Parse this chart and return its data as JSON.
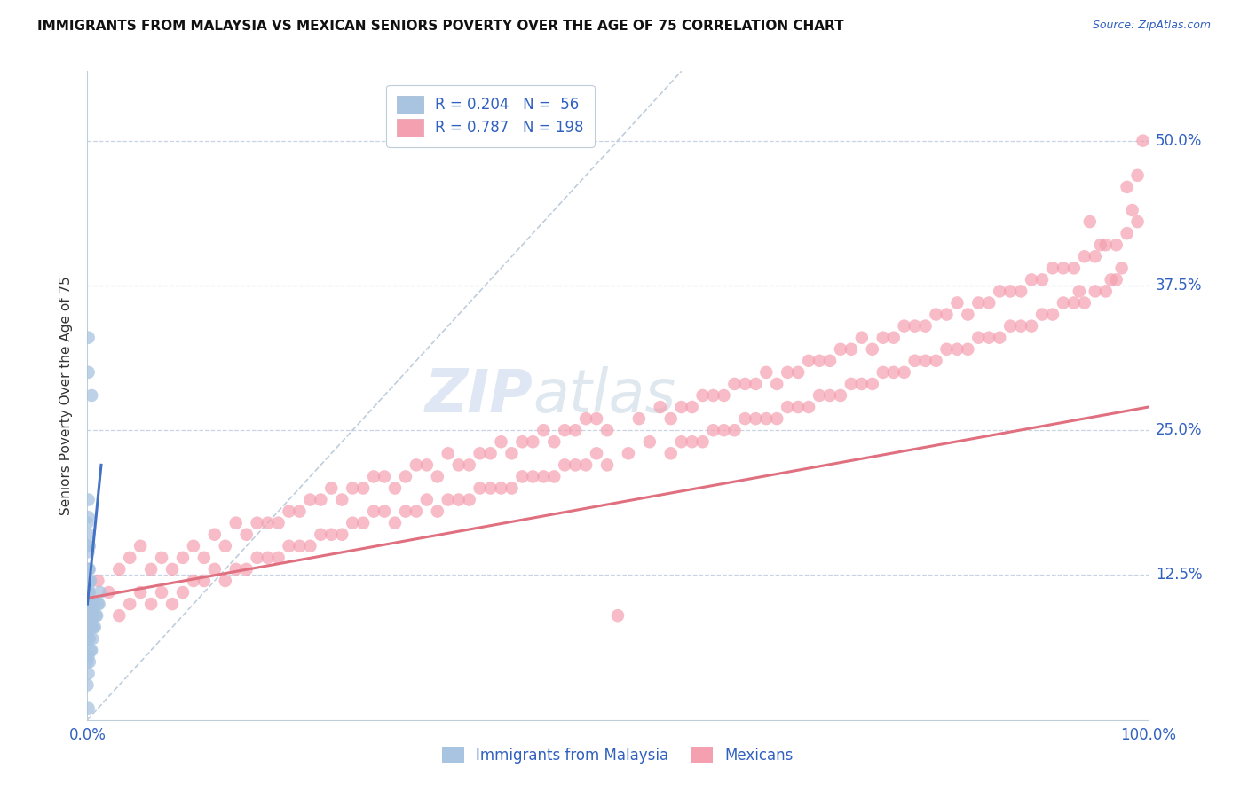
{
  "title": "IMMIGRANTS FROM MALAYSIA VS MEXICAN SENIORS POVERTY OVER THE AGE OF 75 CORRELATION CHART",
  "source_text": "Source: ZipAtlas.com",
  "ylabel": "Seniors Poverty Over the Age of 75",
  "xlim": [
    0,
    1.0
  ],
  "ylim": [
    0,
    0.56
  ],
  "yticks": [
    0.125,
    0.25,
    0.375,
    0.5
  ],
  "ytick_labels": [
    "12.5%",
    "25.0%",
    "37.5%",
    "50.0%"
  ],
  "xtick_labels": [
    "0.0%",
    "100.0%"
  ],
  "malaysia_R": 0.204,
  "malaysia_N": 56,
  "mexican_R": 0.787,
  "mexican_N": 198,
  "malaysia_color": "#a8c4e0",
  "mexican_color": "#f4a0b0",
  "malaysia_line_color": "#4472c4",
  "mexican_line_color": "#e07080",
  "diagonal_color": "#b8c8d8",
  "text_color": "#3060c0",
  "legend_label_malaysia": "Immigrants from Malaysia",
  "legend_label_mexicans": "Mexicans",
  "watermark_zip": "ZIP",
  "watermark_atlas": "atlas",
  "malaysia_scatter": [
    [
      0.001,
      0.04
    ],
    [
      0.001,
      0.055
    ],
    [
      0.001,
      0.07
    ],
    [
      0.001,
      0.085
    ],
    [
      0.001,
      0.1
    ],
    [
      0.001,
      0.115
    ],
    [
      0.001,
      0.13
    ],
    [
      0.001,
      0.145
    ],
    [
      0.001,
      0.16
    ],
    [
      0.001,
      0.175
    ],
    [
      0.001,
      0.19
    ],
    [
      0.001,
      0.07
    ],
    [
      0.001,
      0.08
    ],
    [
      0.001,
      0.09
    ],
    [
      0.001,
      0.1
    ],
    [
      0.001,
      0.11
    ],
    [
      0.001,
      0.12
    ],
    [
      0.001,
      0.13
    ],
    [
      0.002,
      0.05
    ],
    [
      0.002,
      0.07
    ],
    [
      0.002,
      0.09
    ],
    [
      0.002,
      0.11
    ],
    [
      0.002,
      0.13
    ],
    [
      0.002,
      0.15
    ],
    [
      0.002,
      0.08
    ],
    [
      0.002,
      0.1
    ],
    [
      0.002,
      0.12
    ],
    [
      0.003,
      0.06
    ],
    [
      0.003,
      0.08
    ],
    [
      0.003,
      0.1
    ],
    [
      0.003,
      0.12
    ],
    [
      0.004,
      0.06
    ],
    [
      0.004,
      0.08
    ],
    [
      0.004,
      0.1
    ],
    [
      0.005,
      0.07
    ],
    [
      0.005,
      0.09
    ],
    [
      0.006,
      0.08
    ],
    [
      0.006,
      0.1
    ],
    [
      0.007,
      0.08
    ],
    [
      0.008,
      0.09
    ],
    [
      0.009,
      0.09
    ],
    [
      0.01,
      0.1
    ],
    [
      0.011,
      0.1
    ],
    [
      0.012,
      0.11
    ],
    [
      0.0,
      0.03
    ],
    [
      0.0,
      0.05
    ],
    [
      0.0,
      0.07
    ],
    [
      0.0,
      0.09
    ],
    [
      0.0,
      0.11
    ],
    [
      0.0,
      0.13
    ],
    [
      0.0,
      0.15
    ],
    [
      0.0,
      0.17
    ],
    [
      0.001,
      0.3
    ],
    [
      0.001,
      0.33
    ],
    [
      0.004,
      0.28
    ],
    [
      0.001,
      0.01
    ]
  ],
  "mexican_scatter": [
    [
      0.01,
      0.12
    ],
    [
      0.02,
      0.11
    ],
    [
      0.03,
      0.09
    ],
    [
      0.03,
      0.13
    ],
    [
      0.04,
      0.1
    ],
    [
      0.04,
      0.14
    ],
    [
      0.05,
      0.11
    ],
    [
      0.05,
      0.15
    ],
    [
      0.06,
      0.1
    ],
    [
      0.06,
      0.13
    ],
    [
      0.07,
      0.11
    ],
    [
      0.07,
      0.14
    ],
    [
      0.08,
      0.1
    ],
    [
      0.08,
      0.13
    ],
    [
      0.09,
      0.11
    ],
    [
      0.09,
      0.14
    ],
    [
      0.1,
      0.12
    ],
    [
      0.1,
      0.15
    ],
    [
      0.11,
      0.12
    ],
    [
      0.11,
      0.14
    ],
    [
      0.12,
      0.13
    ],
    [
      0.12,
      0.16
    ],
    [
      0.13,
      0.12
    ],
    [
      0.13,
      0.15
    ],
    [
      0.14,
      0.13
    ],
    [
      0.14,
      0.17
    ],
    [
      0.15,
      0.13
    ],
    [
      0.15,
      0.16
    ],
    [
      0.16,
      0.14
    ],
    [
      0.16,
      0.17
    ],
    [
      0.17,
      0.14
    ],
    [
      0.17,
      0.17
    ],
    [
      0.18,
      0.14
    ],
    [
      0.18,
      0.17
    ],
    [
      0.19,
      0.15
    ],
    [
      0.19,
      0.18
    ],
    [
      0.2,
      0.15
    ],
    [
      0.2,
      0.18
    ],
    [
      0.21,
      0.15
    ],
    [
      0.21,
      0.19
    ],
    [
      0.22,
      0.16
    ],
    [
      0.22,
      0.19
    ],
    [
      0.23,
      0.16
    ],
    [
      0.23,
      0.2
    ],
    [
      0.24,
      0.16
    ],
    [
      0.24,
      0.19
    ],
    [
      0.25,
      0.17
    ],
    [
      0.25,
      0.2
    ],
    [
      0.26,
      0.17
    ],
    [
      0.26,
      0.2
    ],
    [
      0.27,
      0.18
    ],
    [
      0.27,
      0.21
    ],
    [
      0.28,
      0.18
    ],
    [
      0.28,
      0.21
    ],
    [
      0.29,
      0.17
    ],
    [
      0.29,
      0.2
    ],
    [
      0.3,
      0.18
    ],
    [
      0.3,
      0.21
    ],
    [
      0.31,
      0.18
    ],
    [
      0.31,
      0.22
    ],
    [
      0.32,
      0.19
    ],
    [
      0.32,
      0.22
    ],
    [
      0.33,
      0.18
    ],
    [
      0.33,
      0.21
    ],
    [
      0.34,
      0.19
    ],
    [
      0.34,
      0.23
    ],
    [
      0.35,
      0.19
    ],
    [
      0.35,
      0.22
    ],
    [
      0.36,
      0.19
    ],
    [
      0.36,
      0.22
    ],
    [
      0.37,
      0.2
    ],
    [
      0.37,
      0.23
    ],
    [
      0.38,
      0.2
    ],
    [
      0.38,
      0.23
    ],
    [
      0.39,
      0.2
    ],
    [
      0.39,
      0.24
    ],
    [
      0.4,
      0.2
    ],
    [
      0.4,
      0.23
    ],
    [
      0.41,
      0.21
    ],
    [
      0.41,
      0.24
    ],
    [
      0.42,
      0.21
    ],
    [
      0.42,
      0.24
    ],
    [
      0.43,
      0.21
    ],
    [
      0.43,
      0.25
    ],
    [
      0.44,
      0.21
    ],
    [
      0.44,
      0.24
    ],
    [
      0.45,
      0.22
    ],
    [
      0.45,
      0.25
    ],
    [
      0.46,
      0.22
    ],
    [
      0.46,
      0.25
    ],
    [
      0.47,
      0.22
    ],
    [
      0.47,
      0.26
    ],
    [
      0.48,
      0.23
    ],
    [
      0.48,
      0.26
    ],
    [
      0.49,
      0.22
    ],
    [
      0.49,
      0.25
    ],
    [
      0.5,
      0.09
    ],
    [
      0.51,
      0.23
    ],
    [
      0.52,
      0.26
    ],
    [
      0.53,
      0.24
    ],
    [
      0.54,
      0.27
    ],
    [
      0.55,
      0.23
    ],
    [
      0.55,
      0.26
    ],
    [
      0.56,
      0.24
    ],
    [
      0.56,
      0.27
    ],
    [
      0.57,
      0.24
    ],
    [
      0.57,
      0.27
    ],
    [
      0.58,
      0.24
    ],
    [
      0.58,
      0.28
    ],
    [
      0.59,
      0.25
    ],
    [
      0.59,
      0.28
    ],
    [
      0.6,
      0.25
    ],
    [
      0.6,
      0.28
    ],
    [
      0.61,
      0.25
    ],
    [
      0.61,
      0.29
    ],
    [
      0.62,
      0.26
    ],
    [
      0.62,
      0.29
    ],
    [
      0.63,
      0.26
    ],
    [
      0.63,
      0.29
    ],
    [
      0.64,
      0.26
    ],
    [
      0.64,
      0.3
    ],
    [
      0.65,
      0.26
    ],
    [
      0.65,
      0.29
    ],
    [
      0.66,
      0.27
    ],
    [
      0.66,
      0.3
    ],
    [
      0.67,
      0.27
    ],
    [
      0.67,
      0.3
    ],
    [
      0.68,
      0.27
    ],
    [
      0.68,
      0.31
    ],
    [
      0.69,
      0.28
    ],
    [
      0.69,
      0.31
    ],
    [
      0.7,
      0.28
    ],
    [
      0.7,
      0.31
    ],
    [
      0.71,
      0.28
    ],
    [
      0.71,
      0.32
    ],
    [
      0.72,
      0.29
    ],
    [
      0.72,
      0.32
    ],
    [
      0.73,
      0.29
    ],
    [
      0.73,
      0.33
    ],
    [
      0.74,
      0.29
    ],
    [
      0.74,
      0.32
    ],
    [
      0.75,
      0.3
    ],
    [
      0.75,
      0.33
    ],
    [
      0.76,
      0.3
    ],
    [
      0.76,
      0.33
    ],
    [
      0.77,
      0.3
    ],
    [
      0.77,
      0.34
    ],
    [
      0.78,
      0.31
    ],
    [
      0.78,
      0.34
    ],
    [
      0.79,
      0.31
    ],
    [
      0.79,
      0.34
    ],
    [
      0.8,
      0.31
    ],
    [
      0.8,
      0.35
    ],
    [
      0.81,
      0.32
    ],
    [
      0.81,
      0.35
    ],
    [
      0.82,
      0.32
    ],
    [
      0.82,
      0.36
    ],
    [
      0.83,
      0.32
    ],
    [
      0.83,
      0.35
    ],
    [
      0.84,
      0.33
    ],
    [
      0.84,
      0.36
    ],
    [
      0.85,
      0.33
    ],
    [
      0.85,
      0.36
    ],
    [
      0.86,
      0.33
    ],
    [
      0.86,
      0.37
    ],
    [
      0.87,
      0.34
    ],
    [
      0.87,
      0.37
    ],
    [
      0.88,
      0.34
    ],
    [
      0.88,
      0.37
    ],
    [
      0.89,
      0.34
    ],
    [
      0.89,
      0.38
    ],
    [
      0.9,
      0.35
    ],
    [
      0.9,
      0.38
    ],
    [
      0.91,
      0.35
    ],
    [
      0.91,
      0.39
    ],
    [
      0.92,
      0.36
    ],
    [
      0.92,
      0.39
    ],
    [
      0.93,
      0.36
    ],
    [
      0.93,
      0.39
    ],
    [
      0.94,
      0.36
    ],
    [
      0.94,
      0.4
    ],
    [
      0.95,
      0.37
    ],
    [
      0.95,
      0.4
    ],
    [
      0.96,
      0.37
    ],
    [
      0.96,
      0.41
    ],
    [
      0.97,
      0.38
    ],
    [
      0.97,
      0.41
    ],
    [
      0.98,
      0.42
    ],
    [
      0.98,
      0.46
    ],
    [
      0.99,
      0.43
    ],
    [
      0.99,
      0.47
    ],
    [
      0.995,
      0.5
    ],
    [
      0.985,
      0.44
    ],
    [
      0.975,
      0.39
    ],
    [
      0.965,
      0.38
    ],
    [
      0.955,
      0.41
    ],
    [
      0.945,
      0.43
    ],
    [
      0.935,
      0.37
    ]
  ],
  "mex_line_x0": 0.0,
  "mex_line_y0": 0.105,
  "mex_line_x1": 1.0,
  "mex_line_y1": 0.27,
  "mal_line_x0": 0.0,
  "mal_line_y0": 0.1,
  "mal_line_x1": 0.013,
  "mal_line_y1": 0.22
}
